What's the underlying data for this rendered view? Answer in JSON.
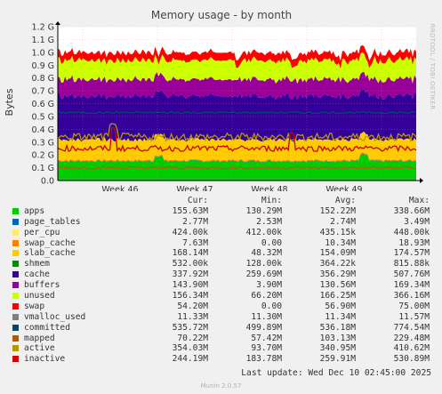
{
  "chart_data": {
    "type": "area",
    "title": "Memory usage - by month",
    "ylabel": "Bytes",
    "ylim": [
      0,
      1.2
    ],
    "y_unit": "G",
    "yticks": [
      "0.0",
      "0.1 G",
      "0.2 G",
      "0.3 G",
      "0.4 G",
      "0.5 G",
      "0.6 G",
      "0.7 G",
      "0.8 G",
      "0.9 G",
      "1.0 G",
      "1.1 G",
      "1.2 G"
    ],
    "x_ticks": [
      "Week 46",
      "Week 47",
      "Week 48",
      "Week 49"
    ],
    "grid": true,
    "side_label": "RRDTOOL / TOBI OETIKER",
    "columns": [
      "Cur:",
      "Min:",
      "Avg:",
      "Max:"
    ],
    "series": [
      {
        "name": "apps",
        "color": "#00cc00",
        "cur": "155.63M",
        "min": "130.29M",
        "avg": "152.22M",
        "max": "338.66M"
      },
      {
        "name": "page_tables",
        "color": "#0066b3",
        "cur": "2.77M",
        "min": "2.53M",
        "avg": "2.74M",
        "max": "3.49M"
      },
      {
        "name": "per_cpu",
        "color": "#ffea6e",
        "cur": "424.00k",
        "min": "412.00k",
        "avg": "435.15k",
        "max": "448.00k"
      },
      {
        "name": "swap_cache",
        "color": "#ff8000",
        "cur": "7.63M",
        "min": "0.00",
        "avg": "10.34M",
        "max": "18.93M"
      },
      {
        "name": "slab_cache",
        "color": "#ffcc00",
        "cur": "168.14M",
        "min": "48.32M",
        "avg": "154.09M",
        "max": "174.57M"
      },
      {
        "name": "shmem",
        "color": "#008f00",
        "cur": "532.00k",
        "min": "128.00k",
        "avg": "364.22k",
        "max": "815.88k"
      },
      {
        "name": "cache",
        "color": "#330099",
        "cur": "337.92M",
        "min": "259.69M",
        "avg": "356.29M",
        "max": "507.76M"
      },
      {
        "name": "buffers",
        "color": "#990099",
        "cur": "143.90M",
        "min": "3.90M",
        "avg": "130.56M",
        "max": "169.34M"
      },
      {
        "name": "unused",
        "color": "#ccff00",
        "cur": "156.34M",
        "min": "66.20M",
        "avg": "166.25M",
        "max": "366.16M"
      },
      {
        "name": "swap",
        "color": "#ff0000",
        "cur": "54.20M",
        "min": "0.00",
        "avg": "56.90M",
        "max": "75.00M"
      },
      {
        "name": "vmalloc_used",
        "color": "#808080",
        "cur": "11.33M",
        "min": "11.30M",
        "avg": "11.34M",
        "max": "11.57M"
      },
      {
        "name": "committed",
        "color": "#004b6b",
        "cur": "535.72M",
        "min": "499.89M",
        "avg": "536.18M",
        "max": "774.54M"
      },
      {
        "name": "mapped",
        "color": "#b35a00",
        "cur": "70.22M",
        "min": "57.42M",
        "avg": "103.13M",
        "max": "229.48M"
      },
      {
        "name": "active",
        "color": "#b39900",
        "cur": "354.03M",
        "min": "93.70M",
        "avg": "340.95M",
        "max": "410.62M"
      },
      {
        "name": "inactive",
        "color": "#cc0000",
        "cur": "244.19M",
        "min": "183.78M",
        "avg": "259.91M",
        "max": "530.89M"
      }
    ],
    "stack_levels_G": {
      "apps": 0.15,
      "page_tables": 0.153,
      "per_cpu": 0.153,
      "swap_cache": 0.16,
      "slab_cache": 0.32,
      "shmem": 0.32,
      "cache": 0.66,
      "buffers": 0.79,
      "unused": 0.94,
      "swap": 1.0
    },
    "line_levels_G": {
      "vmalloc_used": 0.011,
      "committed": 0.53,
      "mapped": 0.1,
      "active": 0.34,
      "inactive": 0.25
    }
  },
  "last_update": "Last update: Wed Dec 10 02:45:00 2025",
  "footer": "Munin 2.0.57"
}
